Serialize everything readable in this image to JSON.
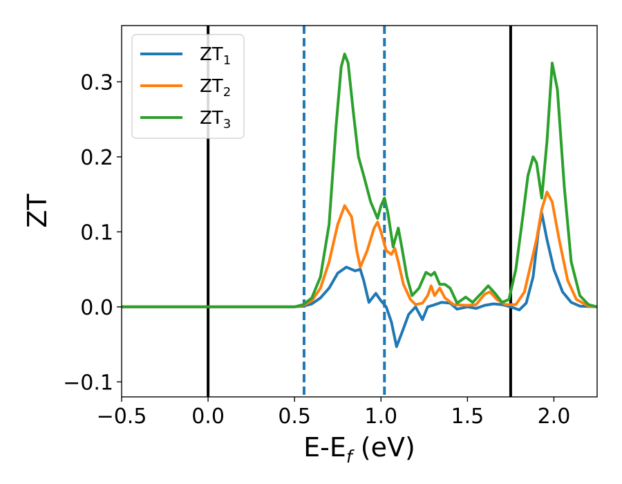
{
  "chart_data": {
    "type": "line",
    "xlabel": {
      "main": "E-E",
      "sub": "f",
      "suffix": " (eV)"
    },
    "ylabel": "ZT",
    "xlim": [
      -0.5,
      2.25
    ],
    "ylim": [
      -0.12,
      0.375
    ],
    "x_ticks": [
      -0.5,
      0.0,
      0.5,
      1.0,
      1.5,
      2.0
    ],
    "x_tick_labels": [
      "−0.5",
      "0.0",
      "0.5",
      "1.0",
      "1.5",
      "2.0"
    ],
    "y_ticks": [
      -0.1,
      0.0,
      0.1,
      0.2,
      0.3
    ],
    "y_tick_labels": [
      "−0.1",
      "0.0",
      "0.1",
      "0.2",
      "0.3"
    ],
    "grid": false,
    "legend_position": "top-left",
    "vertical_lines": [
      {
        "x": 0.0,
        "style": "solid",
        "color": "#000000"
      },
      {
        "x": 0.555,
        "style": "dashed",
        "color": "#1f77b4"
      },
      {
        "x": 1.02,
        "style": "dashed",
        "color": "#1f77b4"
      },
      {
        "x": 1.75,
        "style": "solid",
        "color": "#000000"
      }
    ],
    "series": [
      {
        "name": "ZT",
        "name_sub": "1",
        "color": "#1f77b4",
        "points": [
          [
            -0.5,
            0.0
          ],
          [
            0.5,
            0.0
          ],
          [
            0.55,
            0.001
          ],
          [
            0.6,
            0.004
          ],
          [
            0.65,
            0.012
          ],
          [
            0.7,
            0.025
          ],
          [
            0.75,
            0.045
          ],
          [
            0.8,
            0.053
          ],
          [
            0.85,
            0.048
          ],
          [
            0.88,
            0.05
          ],
          [
            0.9,
            0.035
          ],
          [
            0.93,
            0.006
          ],
          [
            0.97,
            0.018
          ],
          [
            1.0,
            0.008
          ],
          [
            1.03,
            0.0
          ],
          [
            1.06,
            -0.02
          ],
          [
            1.09,
            -0.053
          ],
          [
            1.12,
            -0.035
          ],
          [
            1.16,
            -0.01
          ],
          [
            1.2,
            0.0
          ],
          [
            1.24,
            -0.017
          ],
          [
            1.27,
            0.0
          ],
          [
            1.3,
            0.002
          ],
          [
            1.35,
            0.006
          ],
          [
            1.4,
            0.005
          ],
          [
            1.44,
            -0.003
          ],
          [
            1.5,
            0.0
          ],
          [
            1.55,
            -0.002
          ],
          [
            1.6,
            0.002
          ],
          [
            1.65,
            0.004
          ],
          [
            1.7,
            0.003
          ],
          [
            1.75,
            0.0
          ],
          [
            1.8,
            -0.004
          ],
          [
            1.84,
            0.005
          ],
          [
            1.88,
            0.04
          ],
          [
            1.91,
            0.1
          ],
          [
            1.93,
            0.125
          ],
          [
            1.96,
            0.09
          ],
          [
            2.0,
            0.05
          ],
          [
            2.05,
            0.02
          ],
          [
            2.1,
            0.006
          ],
          [
            2.15,
            0.001
          ],
          [
            2.25,
            0.0
          ]
        ]
      },
      {
        "name": "ZT",
        "name_sub": "2",
        "color": "#ff7f0e",
        "points": [
          [
            -0.5,
            0.0
          ],
          [
            0.5,
            0.0
          ],
          [
            0.55,
            0.002
          ],
          [
            0.6,
            0.008
          ],
          [
            0.65,
            0.025
          ],
          [
            0.7,
            0.06
          ],
          [
            0.75,
            0.11
          ],
          [
            0.79,
            0.135
          ],
          [
            0.83,
            0.12
          ],
          [
            0.86,
            0.075
          ],
          [
            0.88,
            0.053
          ],
          [
            0.92,
            0.075
          ],
          [
            0.96,
            0.105
          ],
          [
            0.98,
            0.113
          ],
          [
            1.0,
            0.1
          ],
          [
            1.03,
            0.075
          ],
          [
            1.06,
            0.07
          ],
          [
            1.08,
            0.078
          ],
          [
            1.1,
            0.06
          ],
          [
            1.13,
            0.03
          ],
          [
            1.17,
            0.01
          ],
          [
            1.2,
            0.003
          ],
          [
            1.24,
            0.005
          ],
          [
            1.27,
            0.015
          ],
          [
            1.29,
            0.028
          ],
          [
            1.31,
            0.015
          ],
          [
            1.34,
            0.025
          ],
          [
            1.37,
            0.012
          ],
          [
            1.42,
            0.003
          ],
          [
            1.5,
            0.002
          ],
          [
            1.55,
            0.003
          ],
          [
            1.6,
            0.017
          ],
          [
            1.63,
            0.02
          ],
          [
            1.67,
            0.01
          ],
          [
            1.72,
            0.003
          ],
          [
            1.78,
            0.003
          ],
          [
            1.83,
            0.02
          ],
          [
            1.87,
            0.06
          ],
          [
            1.9,
            0.09
          ],
          [
            1.93,
            0.13
          ],
          [
            1.96,
            0.153
          ],
          [
            1.99,
            0.14
          ],
          [
            2.03,
            0.09
          ],
          [
            2.08,
            0.035
          ],
          [
            2.13,
            0.01
          ],
          [
            2.2,
            0.001
          ],
          [
            2.25,
            0.0
          ]
        ]
      },
      {
        "name": "ZT",
        "name_sub": "3",
        "color": "#2ca02c",
        "points": [
          [
            -0.5,
            0.0
          ],
          [
            0.5,
            0.0
          ],
          [
            0.55,
            0.003
          ],
          [
            0.6,
            0.012
          ],
          [
            0.65,
            0.04
          ],
          [
            0.7,
            0.11
          ],
          [
            0.74,
            0.24
          ],
          [
            0.77,
            0.32
          ],
          [
            0.79,
            0.337
          ],
          [
            0.81,
            0.325
          ],
          [
            0.84,
            0.26
          ],
          [
            0.87,
            0.2
          ],
          [
            0.9,
            0.175
          ],
          [
            0.94,
            0.14
          ],
          [
            0.98,
            0.118
          ],
          [
            1.0,
            0.135
          ],
          [
            1.02,
            0.145
          ],
          [
            1.04,
            0.125
          ],
          [
            1.07,
            0.08
          ],
          [
            1.1,
            0.105
          ],
          [
            1.12,
            0.08
          ],
          [
            1.15,
            0.04
          ],
          [
            1.18,
            0.015
          ],
          [
            1.22,
            0.025
          ],
          [
            1.26,
            0.046
          ],
          [
            1.29,
            0.042
          ],
          [
            1.31,
            0.046
          ],
          [
            1.34,
            0.03
          ],
          [
            1.37,
            0.03
          ],
          [
            1.4,
            0.025
          ],
          [
            1.44,
            0.005
          ],
          [
            1.49,
            0.013
          ],
          [
            1.53,
            0.006
          ],
          [
            1.58,
            0.018
          ],
          [
            1.62,
            0.028
          ],
          [
            1.66,
            0.018
          ],
          [
            1.7,
            0.006
          ],
          [
            1.74,
            0.01
          ],
          [
            1.78,
            0.05
          ],
          [
            1.82,
            0.12
          ],
          [
            1.85,
            0.175
          ],
          [
            1.88,
            0.2
          ],
          [
            1.9,
            0.192
          ],
          [
            1.93,
            0.145
          ],
          [
            1.96,
            0.22
          ],
          [
            1.99,
            0.325
          ],
          [
            2.02,
            0.29
          ],
          [
            2.06,
            0.16
          ],
          [
            2.1,
            0.06
          ],
          [
            2.15,
            0.015
          ],
          [
            2.2,
            0.003
          ],
          [
            2.25,
            0.0
          ]
        ]
      }
    ]
  }
}
